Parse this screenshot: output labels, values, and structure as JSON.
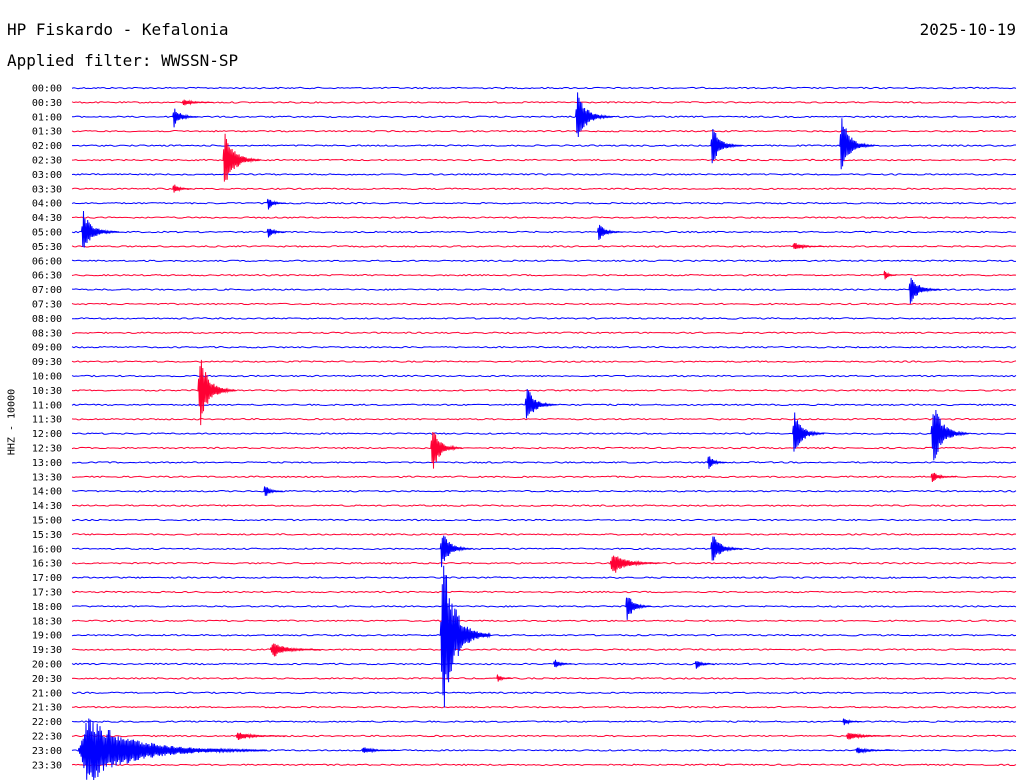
{
  "header": {
    "station": "HP Fiskardo - Kefalonia",
    "filter": "Applied filter: WWSSN-SP",
    "date": "2025-10-19"
  },
  "chart_data": {
    "type": "line",
    "title": "HP Fiskardo - Kefalonia",
    "subtitle": "Applied filter: WWSSN-SP",
    "ylabel": "HHZ - 10000",
    "rows": [
      "00:00",
      "00:30",
      "01:00",
      "01:30",
      "02:00",
      "02:30",
      "03:00",
      "03:30",
      "04:00",
      "04:30",
      "05:00",
      "05:30",
      "06:00",
      "06:30",
      "07:00",
      "07:30",
      "08:00",
      "08:30",
      "09:00",
      "09:30",
      "10:00",
      "10:30",
      "11:00",
      "11:30",
      "12:00",
      "12:30",
      "13:00",
      "13:30",
      "14:00",
      "14:30",
      "15:00",
      "15:30",
      "16:00",
      "16:30",
      "17:00",
      "17:30",
      "18:00",
      "18:30",
      "19:00",
      "19:30",
      "20:00",
      "20:30",
      "21:00",
      "21:30",
      "22:00",
      "22:30",
      "23:00",
      "23:30"
    ],
    "row_colors": [
      "#0000ff",
      "#ff0033"
    ],
    "minutes_per_row": 30,
    "events": [
      {
        "row": 1,
        "minute": 3.5,
        "amplitude": 0.25,
        "duration": 1.0
      },
      {
        "row": 2,
        "minute": 3.2,
        "amplitude": 0.8,
        "duration": 0.8
      },
      {
        "row": 2,
        "minute": 16.0,
        "amplitude": 1.8,
        "duration": 1.2
      },
      {
        "row": 4,
        "minute": 20.3,
        "amplitude": 1.5,
        "duration": 1.0
      },
      {
        "row": 4,
        "minute": 24.4,
        "amplitude": 2.2,
        "duration": 1.1
      },
      {
        "row": 5,
        "minute": 4.8,
        "amplitude": 2.2,
        "duration": 1.2
      },
      {
        "row": 7,
        "minute": 3.2,
        "amplitude": 0.4,
        "duration": 0.6
      },
      {
        "row": 8,
        "minute": 6.2,
        "amplitude": 0.5,
        "duration": 0.6
      },
      {
        "row": 10,
        "minute": 0.3,
        "amplitude": 1.5,
        "duration": 1.2
      },
      {
        "row": 10,
        "minute": 6.2,
        "amplitude": 0.5,
        "duration": 0.6
      },
      {
        "row": 10,
        "minute": 16.7,
        "amplitude": 0.7,
        "duration": 0.8
      },
      {
        "row": 11,
        "minute": 22.9,
        "amplitude": 0.3,
        "duration": 1.0
      },
      {
        "row": 13,
        "minute": 25.8,
        "amplitude": 0.4,
        "duration": 0.4
      },
      {
        "row": 14,
        "minute": 26.6,
        "amplitude": 1.1,
        "duration": 1.0
      },
      {
        "row": 21,
        "minute": 4.0,
        "amplitude": 2.7,
        "duration": 1.2
      },
      {
        "row": 22,
        "minute": 14.4,
        "amplitude": 1.4,
        "duration": 1.0
      },
      {
        "row": 24,
        "minute": 22.9,
        "amplitude": 1.7,
        "duration": 1.0
      },
      {
        "row": 24,
        "minute": 27.3,
        "amplitude": 2.5,
        "duration": 1.2
      },
      {
        "row": 25,
        "minute": 11.4,
        "amplitude": 1.8,
        "duration": 1.0
      },
      {
        "row": 26,
        "minute": 20.2,
        "amplitude": 0.6,
        "duration": 0.6
      },
      {
        "row": 27,
        "minute": 27.3,
        "amplitude": 0.4,
        "duration": 0.8
      },
      {
        "row": 28,
        "minute": 6.1,
        "amplitude": 0.5,
        "duration": 0.6
      },
      {
        "row": 32,
        "minute": 11.7,
        "amplitude": 1.5,
        "duration": 1.0
      },
      {
        "row": 32,
        "minute": 20.3,
        "amplitude": 1.2,
        "duration": 1.0
      },
      {
        "row": 33,
        "minute": 17.1,
        "amplitude": 0.9,
        "duration": 1.6
      },
      {
        "row": 36,
        "minute": 17.6,
        "amplitude": 1.1,
        "duration": 0.8
      },
      {
        "row": 38,
        "minute": 11.7,
        "amplitude": 6.0,
        "duration": 1.6
      },
      {
        "row": 39,
        "minute": 6.3,
        "amplitude": 0.6,
        "duration": 1.6
      },
      {
        "row": 40,
        "minute": 15.3,
        "amplitude": 0.4,
        "duration": 0.6
      },
      {
        "row": 40,
        "minute": 19.8,
        "amplitude": 0.4,
        "duration": 0.6
      },
      {
        "row": 41,
        "minute": 13.5,
        "amplitude": 0.3,
        "duration": 0.5
      },
      {
        "row": 44,
        "minute": 24.5,
        "amplitude": 0.3,
        "duration": 0.6
      },
      {
        "row": 45,
        "minute": 5.2,
        "amplitude": 0.3,
        "duration": 1.6
      },
      {
        "row": 45,
        "minute": 24.6,
        "amplitude": 0.3,
        "duration": 1.4
      },
      {
        "row": 46,
        "minute": 0.2,
        "amplitude": 2.4,
        "duration": 6.0
      },
      {
        "row": 46,
        "minute": 9.2,
        "amplitude": 0.25,
        "duration": 1.2
      },
      {
        "row": 46,
        "minute": 24.9,
        "amplitude": 0.25,
        "duration": 1.2
      }
    ]
  }
}
